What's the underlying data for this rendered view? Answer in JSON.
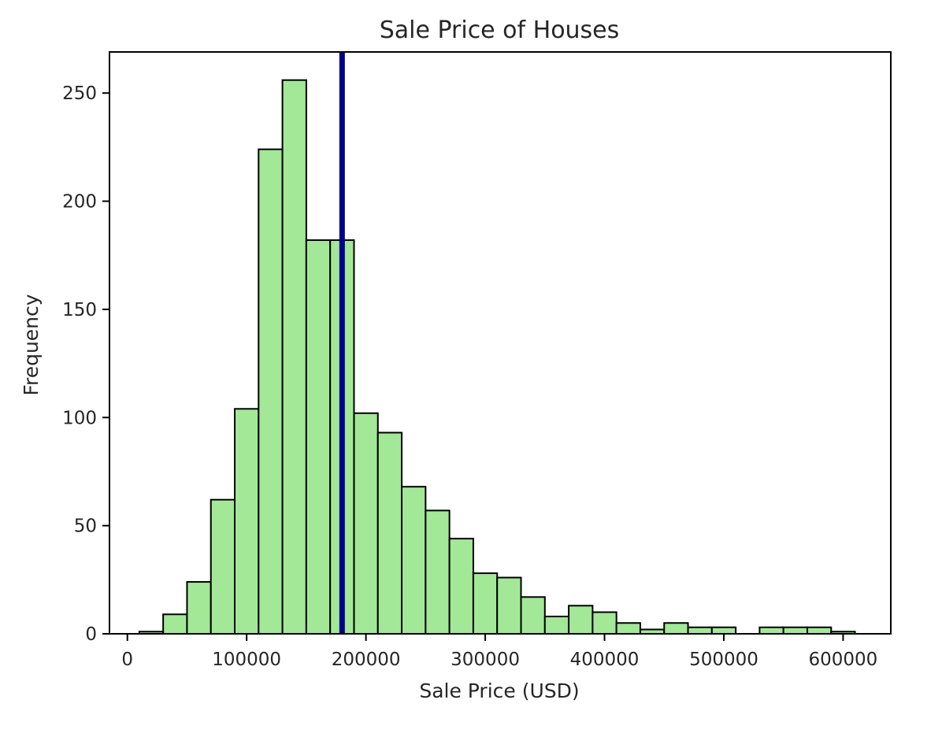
{
  "chart_data": {
    "type": "bar",
    "title": "Sale Price of Houses",
    "xlabel": "Sale Price (USD)",
    "ylabel": "Frequency",
    "xlim": [
      -15000,
      640000
    ],
    "ylim": [
      0,
      269
    ],
    "xticks": [
      0,
      100000,
      200000,
      300000,
      400000,
      500000,
      600000
    ],
    "xtick_labels": [
      "0",
      "100000",
      "200000",
      "300000",
      "400000",
      "500000",
      "600000"
    ],
    "yticks": [
      0,
      50,
      100,
      150,
      200,
      250
    ],
    "ytick_labels": [
      "0",
      "50",
      "100",
      "150",
      "200",
      "250"
    ],
    "grid": false,
    "bin_width": 20000,
    "bins": [
      {
        "x0": 10000,
        "x1": 30000,
        "value": 1
      },
      {
        "x0": 30000,
        "x1": 50000,
        "value": 9
      },
      {
        "x0": 50000,
        "x1": 70000,
        "value": 24
      },
      {
        "x0": 70000,
        "x1": 90000,
        "value": 62
      },
      {
        "x0": 90000,
        "x1": 110000,
        "value": 104
      },
      {
        "x0": 110000,
        "x1": 130000,
        "value": 224
      },
      {
        "x0": 130000,
        "x1": 150000,
        "value": 256
      },
      {
        "x0": 150000,
        "x1": 170000,
        "value": 182
      },
      {
        "x0": 170000,
        "x1": 190000,
        "value": 182
      },
      {
        "x0": 190000,
        "x1": 210000,
        "value": 102
      },
      {
        "x0": 210000,
        "x1": 230000,
        "value": 93
      },
      {
        "x0": 230000,
        "x1": 250000,
        "value": 68
      },
      {
        "x0": 250000,
        "x1": 270000,
        "value": 57
      },
      {
        "x0": 270000,
        "x1": 290000,
        "value": 44
      },
      {
        "x0": 290000,
        "x1": 310000,
        "value": 28
      },
      {
        "x0": 310000,
        "x1": 330000,
        "value": 26
      },
      {
        "x0": 330000,
        "x1": 350000,
        "value": 17
      },
      {
        "x0": 350000,
        "x1": 370000,
        "value": 8
      },
      {
        "x0": 370000,
        "x1": 390000,
        "value": 13
      },
      {
        "x0": 390000,
        "x1": 410000,
        "value": 10
      },
      {
        "x0": 410000,
        "x1": 430000,
        "value": 5
      },
      {
        "x0": 430000,
        "x1": 450000,
        "value": 2
      },
      {
        "x0": 450000,
        "x1": 470000,
        "value": 5
      },
      {
        "x0": 470000,
        "x1": 490000,
        "value": 3
      },
      {
        "x0": 490000,
        "x1": 510000,
        "value": 3
      },
      {
        "x0": 510000,
        "x1": 530000,
        "value": 0
      },
      {
        "x0": 530000,
        "x1": 550000,
        "value": 3
      },
      {
        "x0": 550000,
        "x1": 570000,
        "value": 3
      },
      {
        "x0": 570000,
        "x1": 590000,
        "value": 3
      },
      {
        "x0": 590000,
        "x1": 610000,
        "value": 1
      }
    ],
    "vertical_line": {
      "x": 180000
    },
    "colors": {
      "bar_fill": "#a2e897",
      "bar_edge": "#000000",
      "vline": "#00008b",
      "axes": "#000000",
      "text": "#262626"
    }
  }
}
